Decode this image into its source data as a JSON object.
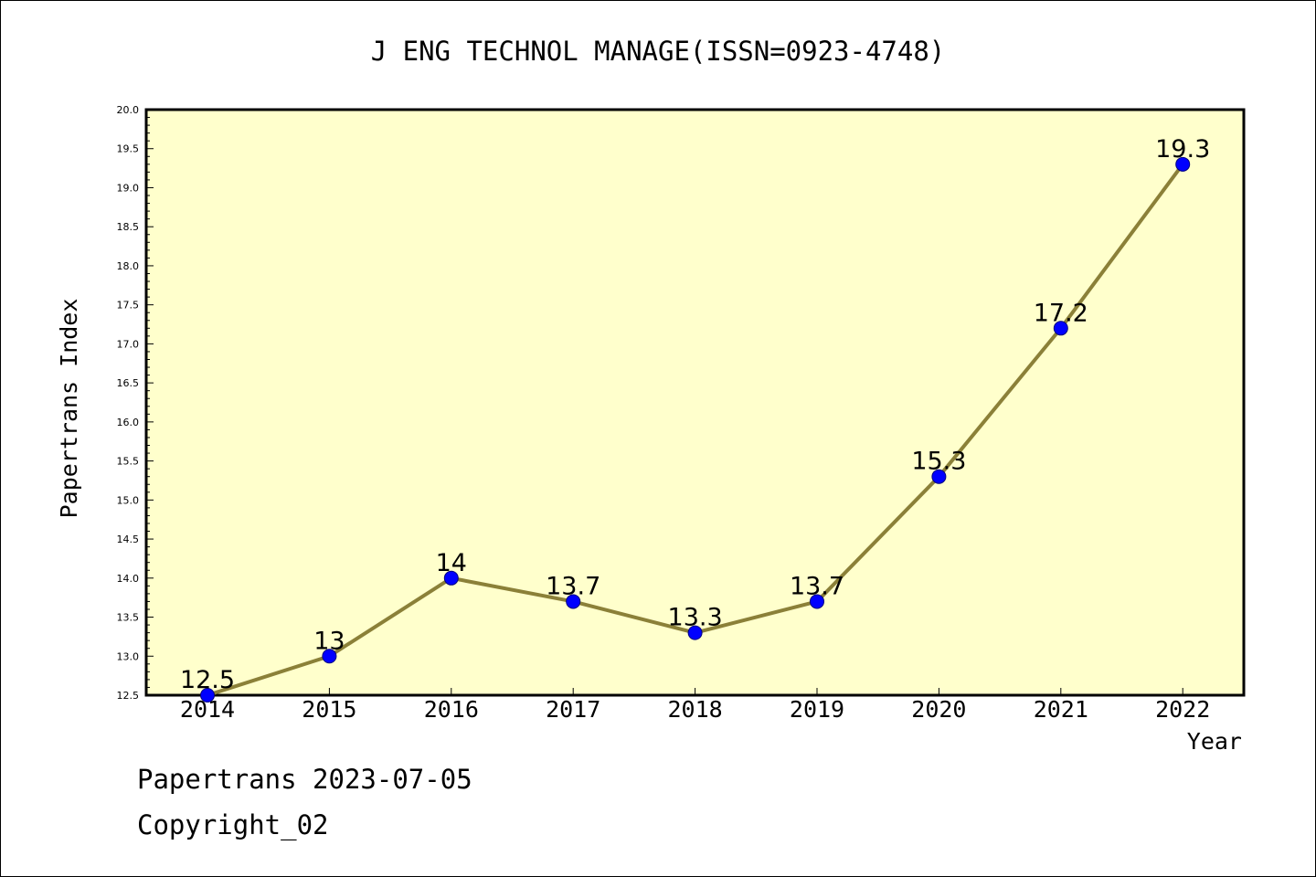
{
  "footer": {
    "date_line": "Papertrans 2023-07-05",
    "copyright_line": "Copyright_02"
  },
  "chart_data": {
    "type": "line",
    "title": "J ENG TECHNOL MANAGE(ISSN=0923-4748)",
    "xlabel": "Year",
    "ylabel": "Papertrans Index",
    "categories": [
      "2014",
      "2015",
      "2016",
      "2017",
      "2018",
      "2019",
      "2020",
      "2021",
      "2022"
    ],
    "values": [
      12.5,
      13,
      14,
      13.7,
      13.3,
      13.7,
      15.3,
      17.2,
      19.3
    ],
    "data_labels": [
      "12.5",
      "13",
      "14",
      "13.7",
      "13.3",
      "13.7",
      "15.3",
      "17.2",
      "19.3"
    ],
    "ylim": [
      12.5,
      20.0
    ],
    "y_ticks": [
      "12.5",
      "13.0",
      "13.5",
      "14.0",
      "14.5",
      "15.0",
      "15.5",
      "16.0",
      "16.5",
      "17.0",
      "17.5",
      "18.0",
      "18.5",
      "19.0",
      "19.5",
      "20.0"
    ],
    "grid": false,
    "legend": "none",
    "colors": {
      "plot_background": "#ffffcc",
      "line": "#8b8038",
      "marker_fill": "#0000ff",
      "marker_stroke": "#000080",
      "axis": "#000000"
    }
  }
}
